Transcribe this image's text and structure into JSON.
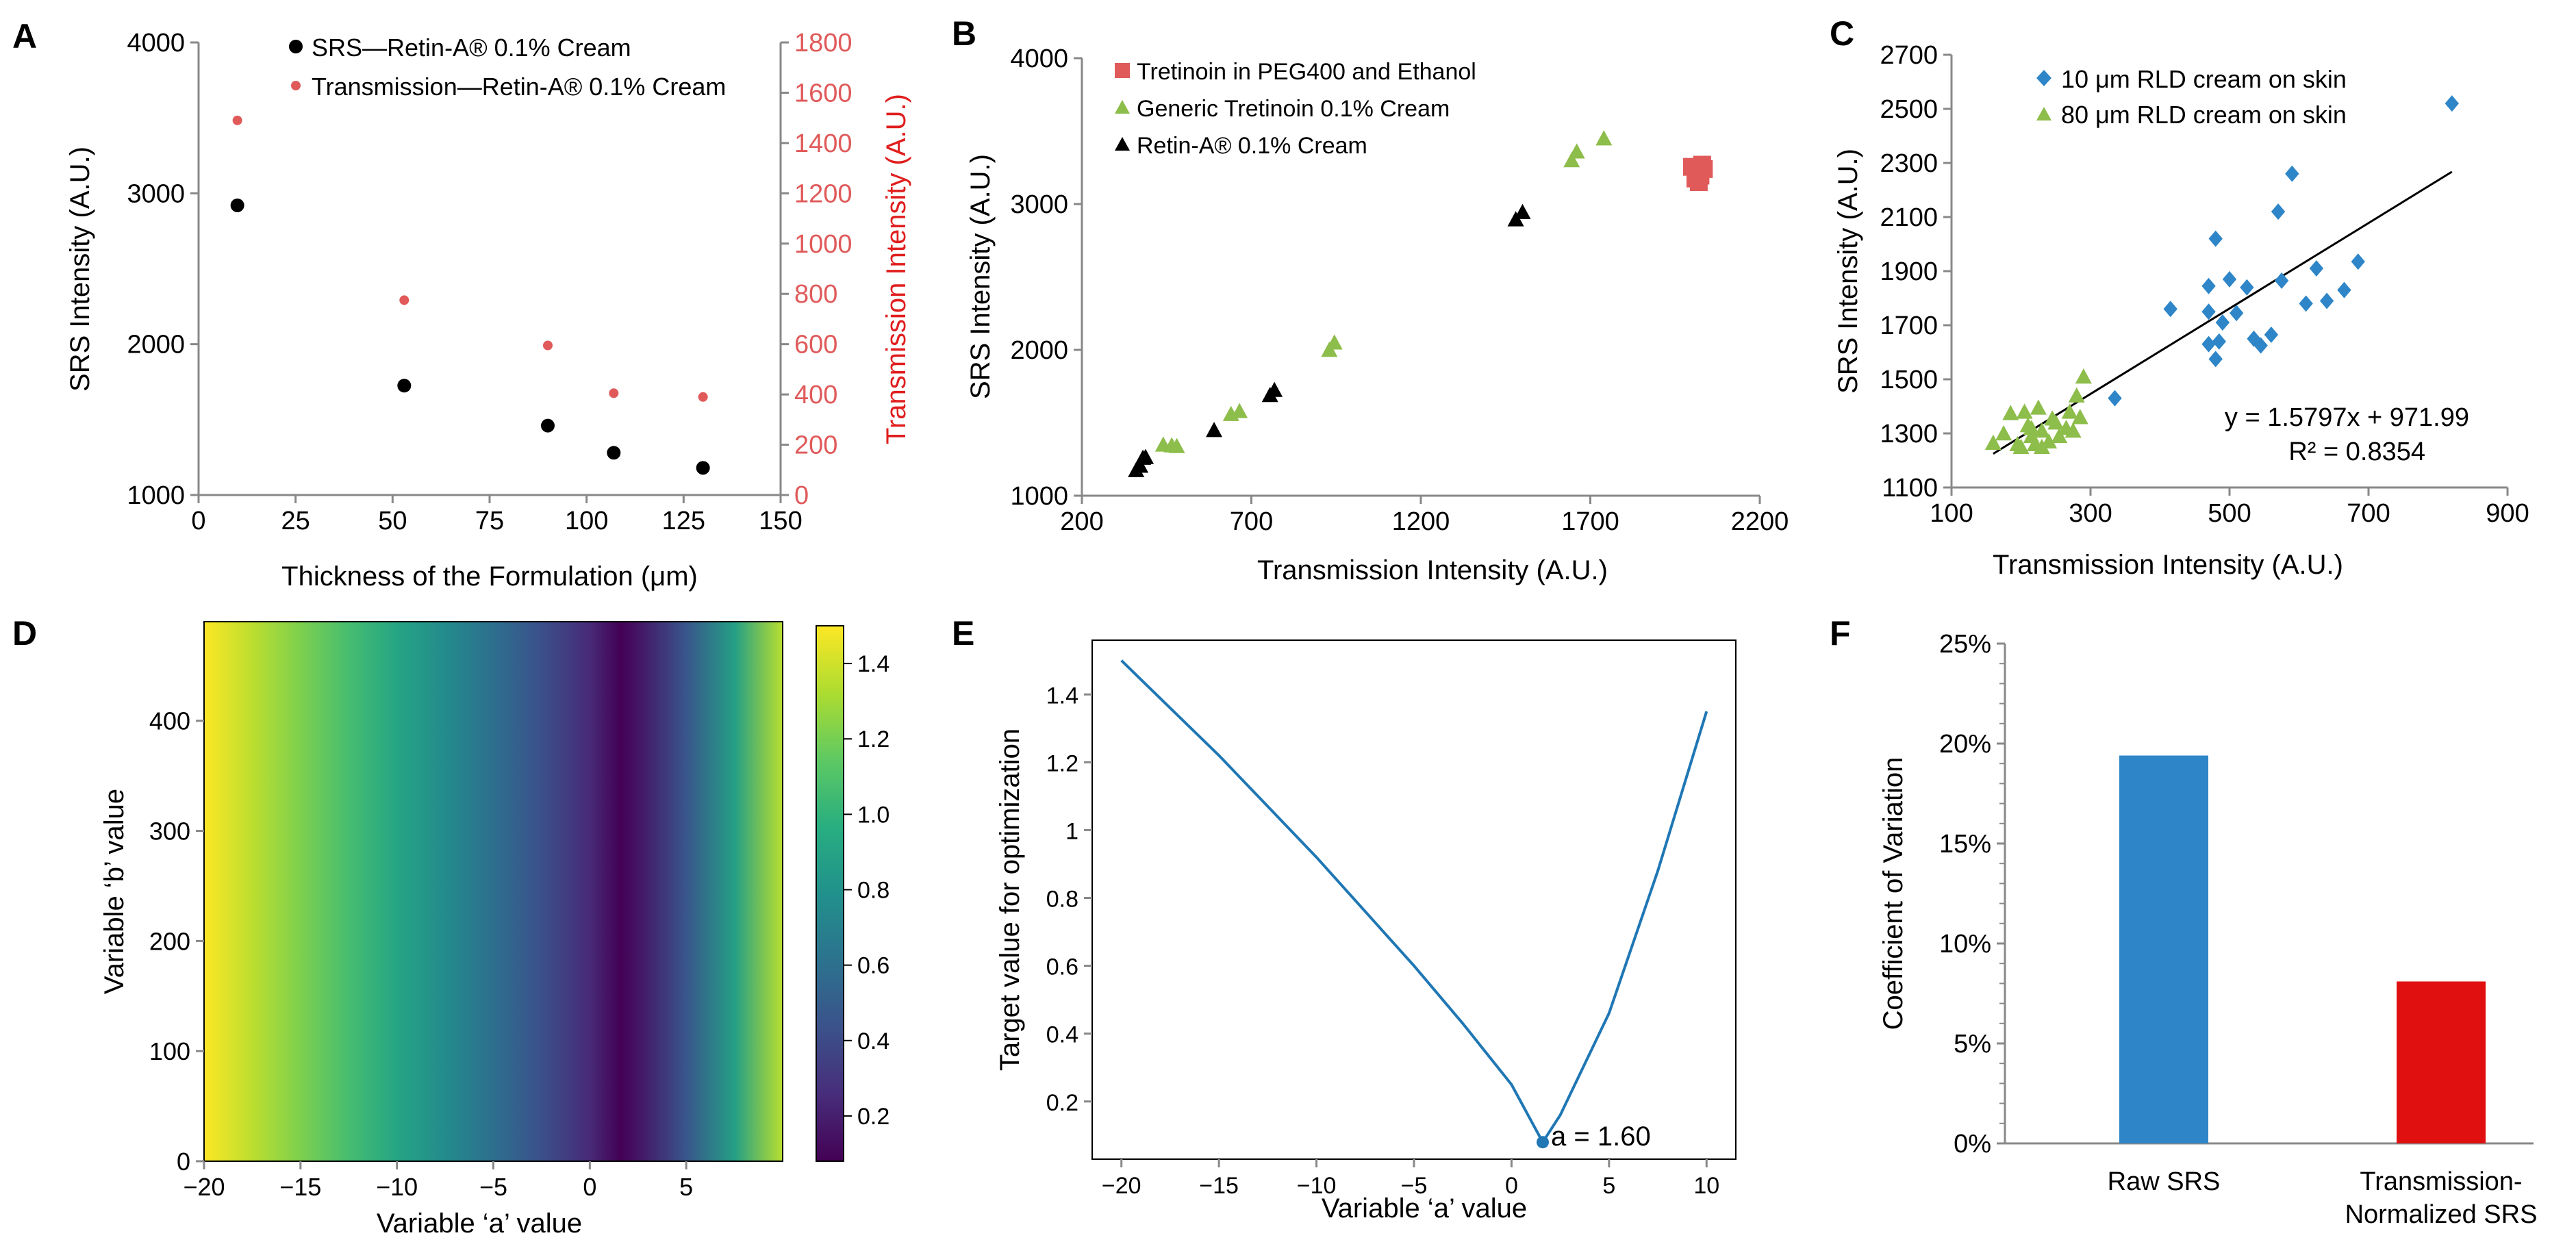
{
  "colors": {
    "black": "#000000",
    "red": "#e01e1e",
    "salmon": "#e05a5a",
    "green": "#8dbd4a",
    "blue": "#2e86c8",
    "line_blue": "#1f77b4",
    "bar_red": "#e01010"
  },
  "chart_data": [
    {
      "panel": "A",
      "type": "scatter",
      "xlabel": "Thickness of the Formulation (μm)",
      "ylabel": "SRS Intensity (A.U.)",
      "y2label": "Transmission Intensity (A.U.)",
      "xlim": [
        0,
        150
      ],
      "ylim": [
        1000,
        4000
      ],
      "y2lim": [
        0,
        1800
      ],
      "xticks": [
        0,
        25,
        50,
        75,
        100,
        125,
        150
      ],
      "yticks": [
        1000,
        2000,
        3000,
        4000
      ],
      "y2ticks": [
        0,
        200,
        400,
        600,
        800,
        1000,
        1200,
        1400,
        1600,
        1800
      ],
      "legend_position": "top",
      "series": [
        {
          "name": "SRS—Retin-A® 0.1% Cream",
          "axis": "left",
          "color": "#000000",
          "points": [
            [
              10,
              2920
            ],
            [
              53,
              1725
            ],
            [
              90,
              1460
            ],
            [
              107,
              1280
            ],
            [
              130,
              1180
            ]
          ]
        },
        {
          "name": "Transmission—Retin-A® 0.1% Cream",
          "axis": "right",
          "color": "#e05a5a",
          "points": [
            [
              10,
              1490
            ],
            [
              53,
              775
            ],
            [
              90,
              595
            ],
            [
              107,
              405
            ],
            [
              130,
              390
            ]
          ]
        }
      ]
    },
    {
      "panel": "B",
      "type": "scatter",
      "xlabel": "Transmission Intensity (A.U.)",
      "ylabel": "SRS Intensity (A.U.)",
      "xlim": [
        200,
        2200
      ],
      "ylim": [
        1000,
        4000
      ],
      "xticks": [
        200,
        700,
        1200,
        1700,
        2200
      ],
      "yticks": [
        1000,
        2000,
        3000,
        4000
      ],
      "legend_position": "top-left",
      "series": [
        {
          "name": "Tretinoin in PEG400 and Ethanol",
          "marker": "square",
          "color": "#e05a5a",
          "points": [
            [
              2000,
              3255
            ],
            [
              2015,
              3230
            ],
            [
              2025,
              3195
            ],
            [
              2020,
              3150
            ],
            [
              2030,
              3270
            ],
            [
              2010,
              3175
            ],
            [
              2035,
              3240
            ]
          ]
        },
        {
          "name": "Generic Tretinoin 0.1% Cream",
          "marker": "triangle",
          "color": "#8dbd4a",
          "points": [
            [
              440,
              1350
            ],
            [
              465,
              1345
            ],
            [
              480,
              1340
            ],
            [
              640,
              1560
            ],
            [
              665,
              1580
            ],
            [
              930,
              2000
            ],
            [
              945,
              2050
            ],
            [
              1645,
              3300
            ],
            [
              1660,
              3360
            ],
            [
              1740,
              3450
            ]
          ]
        },
        {
          "name": "Retin-A® 0.1% Cream",
          "marker": "triangle",
          "color": "#000000",
          "points": [
            [
              360,
              1175
            ],
            [
              372,
              1205
            ],
            [
              380,
              1260
            ],
            [
              388,
              1265
            ],
            [
              590,
              1450
            ],
            [
              755,
              1690
            ],
            [
              768,
              1725
            ],
            [
              1480,
              2895
            ],
            [
              1500,
              2945
            ]
          ]
        }
      ]
    },
    {
      "panel": "C",
      "type": "scatter",
      "xlabel": "Transmission Intensity (A.U.)",
      "ylabel": "SRS Intensity (A.U.)",
      "xlim": [
        100,
        900
      ],
      "ylim": [
        1100,
        2700
      ],
      "xticks": [
        100,
        300,
        500,
        700,
        900
      ],
      "yticks": [
        1100,
        1300,
        1500,
        1700,
        1900,
        2100,
        2300,
        2500,
        2700
      ],
      "legend_position": "top-left",
      "trendline": {
        "slope": 1.5797,
        "intercept": 971.99,
        "x_range": [
          160,
          820
        ]
      },
      "equation": "y = 1.5797x + 971.99",
      "r_squared": "R² = 0.8354",
      "series": [
        {
          "name": "10 μm RLD cream on skin",
          "marker": "diamond",
          "color": "#2e86c8",
          "points": [
            [
              820,
              2520
            ],
            [
              590,
              2260
            ],
            [
              570,
              2120
            ],
            [
              480,
              2020
            ],
            [
              685,
              1935
            ],
            [
              625,
              1910
            ],
            [
              575,
              1865
            ],
            [
              500,
              1870
            ],
            [
              525,
              1840
            ],
            [
              470,
              1845
            ],
            [
              415,
              1760
            ],
            [
              470,
              1750
            ],
            [
              510,
              1745
            ],
            [
              490,
              1710
            ],
            [
              560,
              1665
            ],
            [
              535,
              1650
            ],
            [
              545,
              1625
            ],
            [
              665,
              1830
            ],
            [
              640,
              1790
            ],
            [
              610,
              1780
            ],
            [
              470,
              1630
            ],
            [
              485,
              1640
            ],
            [
              480,
              1575
            ],
            [
              335,
              1430
            ]
          ]
        },
        {
          "name": "80 μm RLD cream on skin",
          "marker": "triangle",
          "color": "#8dbd4a",
          "points": [
            [
              160,
              1265
            ],
            [
              175,
              1300
            ],
            [
              185,
              1375
            ],
            [
              195,
              1260
            ],
            [
              200,
              1250
            ],
            [
              205,
              1380
            ],
            [
              210,
              1330
            ],
            [
              215,
              1290
            ],
            [
              220,
              1260
            ],
            [
              225,
              1395
            ],
            [
              230,
              1310
            ],
            [
              240,
              1270
            ],
            [
              245,
              1355
            ],
            [
              250,
              1340
            ],
            [
              255,
              1290
            ],
            [
              265,
              1320
            ],
            [
              270,
              1380
            ],
            [
              275,
              1310
            ],
            [
              280,
              1440
            ],
            [
              290,
              1510
            ],
            [
              285,
              1360
            ],
            [
              230,
              1250
            ],
            [
              215,
              1320
            ]
          ]
        }
      ]
    },
    {
      "panel": "D",
      "type": "heatmap",
      "xlabel": "Variable ‘a’ value",
      "ylabel": "Variable ‘b’ value",
      "xlim": [
        -20,
        10
      ],
      "ylim": [
        0,
        490
      ],
      "xticks": [
        -20,
        -15,
        -10,
        -5,
        0,
        5
      ],
      "yticks": [
        0,
        100,
        200,
        300,
        400
      ],
      "colorbar_range": [
        0.08,
        1.5
      ],
      "colorbar_ticks": [
        0.2,
        0.4,
        0.6,
        0.8,
        1.0,
        1.2,
        1.4
      ],
      "colormap": "viridis",
      "profile_x": [
        -20,
        -17.5,
        -15,
        -12.5,
        -10,
        -7.5,
        -5,
        -2.5,
        0,
        1.6,
        2.5,
        5,
        7.5,
        10
      ],
      "profile_value": [
        1.5,
        1.36,
        1.22,
        1.07,
        0.92,
        0.76,
        0.6,
        0.43,
        0.25,
        0.08,
        0.16,
        0.46,
        0.88,
        1.35
      ]
    },
    {
      "panel": "E",
      "type": "line",
      "xlabel": "Variable ‘a’ value",
      "ylabel": "Target value for optimization",
      "xlim": [
        -21.5,
        11.5
      ],
      "ylim": [
        0.03,
        1.56
      ],
      "xticks": [
        -20,
        -15,
        -10,
        -5,
        0,
        5,
        10
      ],
      "yticks": [
        0.2,
        0.4,
        0.6,
        0.8,
        1.0,
        1.2,
        1.4
      ],
      "x": [
        -20,
        -17.5,
        -15,
        -12.5,
        -10,
        -7.5,
        -5,
        -2.5,
        0,
        1.6,
        2.5,
        5,
        7.5,
        10
      ],
      "y": [
        1.5,
        1.36,
        1.22,
        1.07,
        0.92,
        0.76,
        0.6,
        0.43,
        0.25,
        0.08,
        0.16,
        0.46,
        0.88,
        1.35
      ],
      "min_point": [
        1.6,
        0.08
      ],
      "annotation": "a = 1.60"
    },
    {
      "panel": "F",
      "type": "bar",
      "ylabel": "Coefficient of Variation",
      "ylim": [
        0,
        25
      ],
      "yticks": [
        0,
        5,
        10,
        15,
        20,
        25
      ],
      "tick_suffix": "%",
      "categories": [
        "Raw SRS",
        "Transmission-Normalized SRS"
      ],
      "category_lines": [
        [
          "Raw SRS"
        ],
        [
          "Transmission-",
          "Normalized SRS"
        ]
      ],
      "values": [
        19.4,
        8.1
      ],
      "bar_colors": [
        "#2e86c8",
        "#e01010"
      ]
    }
  ]
}
